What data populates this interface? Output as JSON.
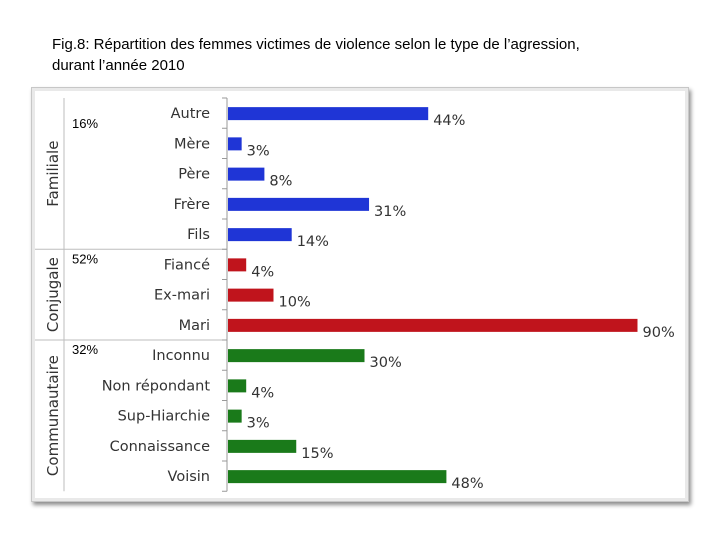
{
  "figure": {
    "title": "Fig.8: Répartition des femmes victimes de violence selon le type de l’agression,\n durant l’année 2010"
  },
  "colors": {
    "familiale": "#1f35d6",
    "conjugale": "#c0141c",
    "communautaire": "#1a7a1a"
  },
  "chart_data": {
    "type": "bar",
    "orientation": "horizontal",
    "title": "Fig.8: Répartition des femmes victimes de violence selon le type de l’agression, durant l’année 2010",
    "xlabel": "",
    "ylabel": "",
    "xlim": [
      0,
      90
    ],
    "value_suffix": "%",
    "groups": [
      {
        "name": "Familiale",
        "share": "16%",
        "color": "#1f35d6",
        "categories": [
          "Autre",
          "Mère",
          "Père",
          "Frère",
          "Fils"
        ],
        "values": [
          44,
          3,
          8,
          31,
          14
        ]
      },
      {
        "name": "Conjugale",
        "share": "52%",
        "color": "#c0141c",
        "categories": [
          "Fiancé",
          "Ex-mari",
          "Mari"
        ],
        "values": [
          4,
          10,
          90
        ]
      },
      {
        "name": "Communautaire",
        "share": "32%",
        "color": "#1a7a1a",
        "categories": [
          "Inconnu",
          "Non répondant",
          "Sup-Hiarchie",
          "Connaissance",
          "Voisin"
        ],
        "values": [
          30,
          4,
          3,
          15,
          48
        ]
      }
    ]
  }
}
